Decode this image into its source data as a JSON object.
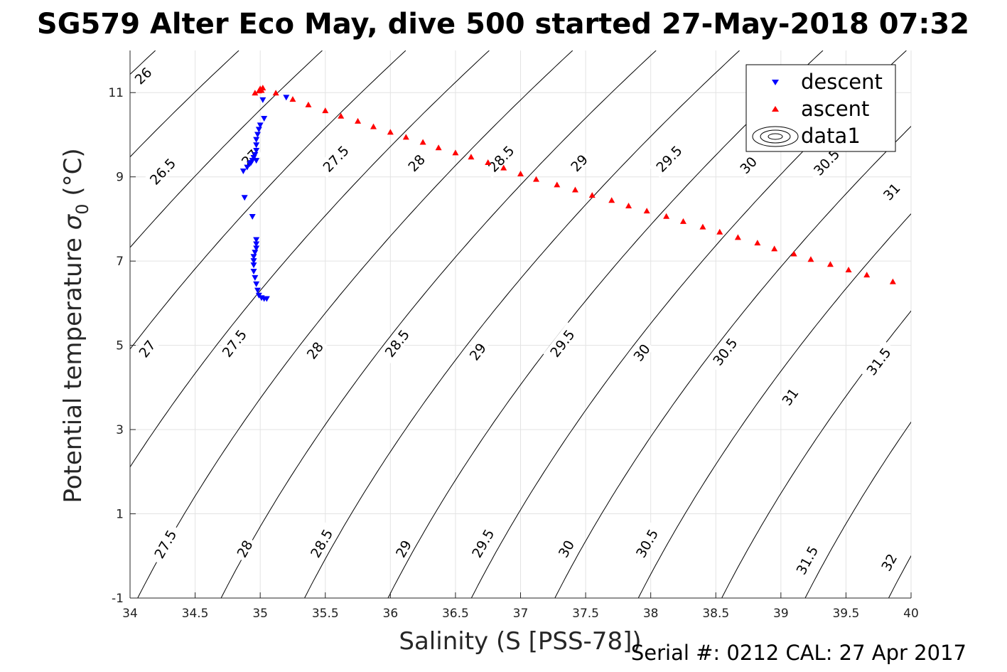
{
  "chart_data": {
    "type": "scatter",
    "title": "SG579 Alter Eco May, dive 500 started 27-May-2018 07:32",
    "xlabel": "Salinity (S [PSS-78])",
    "ylabel_main": "Potential temperature ",
    "ylabel_sym": "σ",
    "ylabel_sub": "0",
    "ylabel_unit": " (°C)",
    "footer": "Serial #: 0212  CAL: 27 Apr 2017",
    "xlim": [
      34,
      40
    ],
    "ylim": [
      -1,
      12
    ],
    "xticks": [
      "34",
      "34.5",
      "35",
      "35.5",
      "36",
      "36.5",
      "37",
      "37.5",
      "38",
      "38.5",
      "39",
      "39.5",
      "40"
    ],
    "yticks": [
      "-1",
      "1",
      "3",
      "5",
      "7",
      "9",
      "11"
    ],
    "grid": true,
    "legend": {
      "position": "top-right",
      "entries": [
        "descent",
        "ascent",
        "data1"
      ]
    },
    "series": [
      {
        "name": "descent",
        "color": "#0000ff",
        "marker": "triangle-down",
        "points": [
          [
            35.2,
            10.88
          ],
          [
            35.02,
            10.82
          ],
          [
            35.03,
            10.38
          ],
          [
            35.0,
            10.22
          ],
          [
            34.99,
            10.12
          ],
          [
            34.98,
            10.0
          ],
          [
            34.97,
            9.88
          ],
          [
            34.97,
            9.75
          ],
          [
            34.97,
            9.62
          ],
          [
            34.96,
            9.52
          ],
          [
            34.95,
            9.45
          ],
          [
            34.94,
            9.38
          ],
          [
            34.92,
            9.3
          ],
          [
            34.9,
            9.22
          ],
          [
            34.87,
            9.13
          ],
          [
            34.93,
            9.33
          ],
          [
            34.97,
            9.38
          ],
          [
            34.88,
            8.5
          ],
          [
            34.94,
            8.05
          ],
          [
            34.97,
            7.5
          ],
          [
            34.97,
            7.4
          ],
          [
            34.97,
            7.3
          ],
          [
            34.96,
            7.2
          ],
          [
            34.95,
            7.1
          ],
          [
            34.95,
            7.0
          ],
          [
            34.95,
            6.9
          ],
          [
            34.95,
            6.75
          ],
          [
            34.96,
            6.6
          ],
          [
            34.97,
            6.45
          ],
          [
            34.98,
            6.3
          ],
          [
            34.99,
            6.18
          ],
          [
            35.01,
            6.12
          ],
          [
            35.03,
            6.1
          ],
          [
            35.05,
            6.1
          ]
        ]
      },
      {
        "name": "ascent",
        "color": "#ff0000",
        "marker": "triangle-up",
        "points": [
          [
            34.96,
            11.0
          ],
          [
            34.99,
            11.05
          ],
          [
            35.0,
            11.1
          ],
          [
            35.02,
            11.12
          ],
          [
            35.01,
            11.06
          ],
          [
            35.12,
            11.0
          ],
          [
            35.25,
            10.85
          ],
          [
            35.37,
            10.72
          ],
          [
            35.5,
            10.58
          ],
          [
            35.62,
            10.45
          ],
          [
            35.75,
            10.33
          ],
          [
            35.87,
            10.2
          ],
          [
            36.0,
            10.07
          ],
          [
            36.12,
            9.95
          ],
          [
            36.25,
            9.83
          ],
          [
            36.37,
            9.7
          ],
          [
            36.5,
            9.58
          ],
          [
            36.62,
            9.48
          ],
          [
            36.75,
            9.35
          ],
          [
            36.87,
            9.22
          ],
          [
            37.0,
            9.08
          ],
          [
            37.12,
            8.95
          ],
          [
            37.28,
            8.82
          ],
          [
            37.42,
            8.7
          ],
          [
            37.55,
            8.57
          ],
          [
            37.7,
            8.45
          ],
          [
            37.83,
            8.32
          ],
          [
            37.97,
            8.2
          ],
          [
            38.12,
            8.07
          ],
          [
            38.25,
            7.95
          ],
          [
            38.4,
            7.82
          ],
          [
            38.53,
            7.7
          ],
          [
            38.67,
            7.57
          ],
          [
            38.82,
            7.44
          ],
          [
            38.95,
            7.3
          ],
          [
            39.1,
            7.18
          ],
          [
            39.23,
            7.05
          ],
          [
            39.38,
            6.93
          ],
          [
            39.52,
            6.8
          ],
          [
            39.66,
            6.68
          ],
          [
            39.86,
            6.52
          ]
        ]
      }
    ],
    "contour_labels": [
      {
        "text": "26",
        "at": [
          34.1,
          11.4
        ]
      },
      {
        "text": "26.5",
        "at": [
          34.25,
          9.13
        ]
      },
      {
        "text": "27",
        "at": [
          34.92,
          9.45
        ]
      },
      {
        "text": "27.5",
        "at": [
          35.58,
          9.43
        ]
      },
      {
        "text": "28",
        "at": [
          36.2,
          9.33
        ]
      },
      {
        "text": "28.5",
        "at": [
          36.85,
          9.43
        ]
      },
      {
        "text": "29",
        "at": [
          37.45,
          9.33
        ]
      },
      {
        "text": "29.5",
        "at": [
          38.14,
          9.43
        ]
      },
      {
        "text": "30",
        "at": [
          38.75,
          9.28
        ]
      },
      {
        "text": "30.5",
        "at": [
          39.35,
          9.35
        ]
      },
      {
        "text": "31",
        "at": [
          39.85,
          8.65
        ]
      },
      {
        "text": "27",
        "at": [
          34.13,
          4.92
        ]
      },
      {
        "text": "27.5",
        "at": [
          34.8,
          5.05
        ]
      },
      {
        "text": "28",
        "at": [
          35.42,
          4.88
        ]
      },
      {
        "text": "28.5",
        "at": [
          36.05,
          5.05
        ]
      },
      {
        "text": "29",
        "at": [
          36.67,
          4.85
        ]
      },
      {
        "text": "29.5",
        "at": [
          37.32,
          5.05
        ]
      },
      {
        "text": "30",
        "at": [
          37.93,
          4.83
        ]
      },
      {
        "text": "30.5",
        "at": [
          38.57,
          4.85
        ]
      },
      {
        "text": "31",
        "at": [
          39.07,
          3.78
        ]
      },
      {
        "text": "31.5",
        "at": [
          39.75,
          4.62
        ]
      },
      {
        "text": "27.5",
        "at": [
          34.27,
          0.28
        ]
      },
      {
        "text": "28",
        "at": [
          34.88,
          0.17
        ]
      },
      {
        "text": "28.5",
        "at": [
          35.47,
          0.3
        ]
      },
      {
        "text": "29",
        "at": [
          36.1,
          0.17
        ]
      },
      {
        "text": "29.5",
        "at": [
          36.71,
          0.3
        ]
      },
      {
        "text": "30",
        "at": [
          37.35,
          0.17
        ]
      },
      {
        "text": "30.5",
        "at": [
          37.97,
          0.3
        ]
      },
      {
        "text": "31.5",
        "at": [
          39.2,
          -0.1
        ]
      },
      {
        "text": "32",
        "at": [
          39.83,
          -0.15
        ]
      }
    ]
  }
}
